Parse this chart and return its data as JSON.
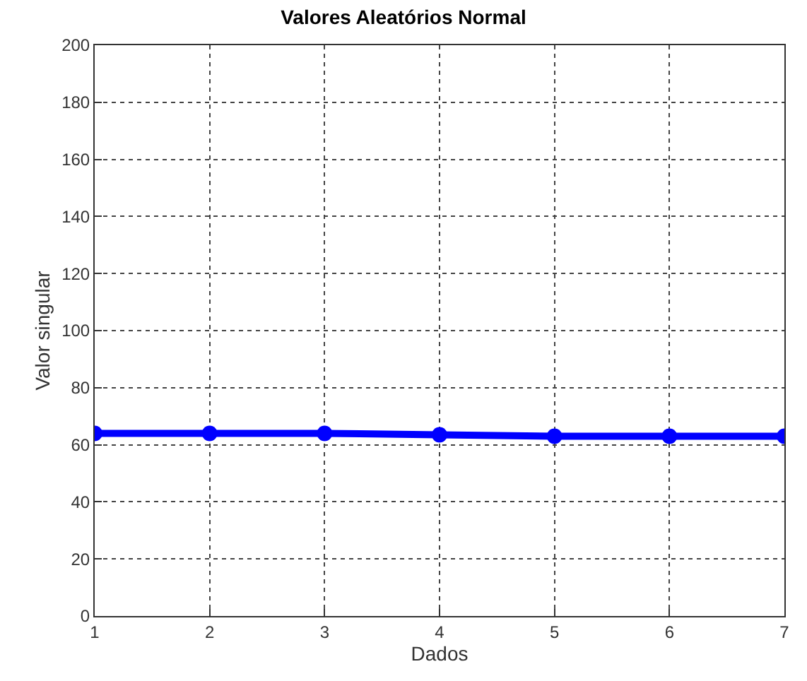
{
  "chart_data": {
    "type": "line",
    "title": "Valores Aleatórios Normal",
    "xlabel": "Dados",
    "ylabel": "Valor singular",
    "x": [
      1,
      2,
      3,
      4,
      5,
      6,
      7
    ],
    "series": [
      {
        "color": "#0000ff",
        "values": [
          64,
          64,
          64,
          63.5,
          63,
          63,
          63
        ]
      }
    ],
    "xlim": [
      1,
      7
    ],
    "xticks": [
      1,
      2,
      3,
      4,
      5,
      6,
      7
    ],
    "ylim": [
      0,
      200
    ],
    "yticks": [
      0,
      20,
      40,
      60,
      80,
      100,
      120,
      140,
      160,
      180,
      200
    ],
    "grid": true,
    "marker": "circle",
    "line_style": "solid"
  }
}
